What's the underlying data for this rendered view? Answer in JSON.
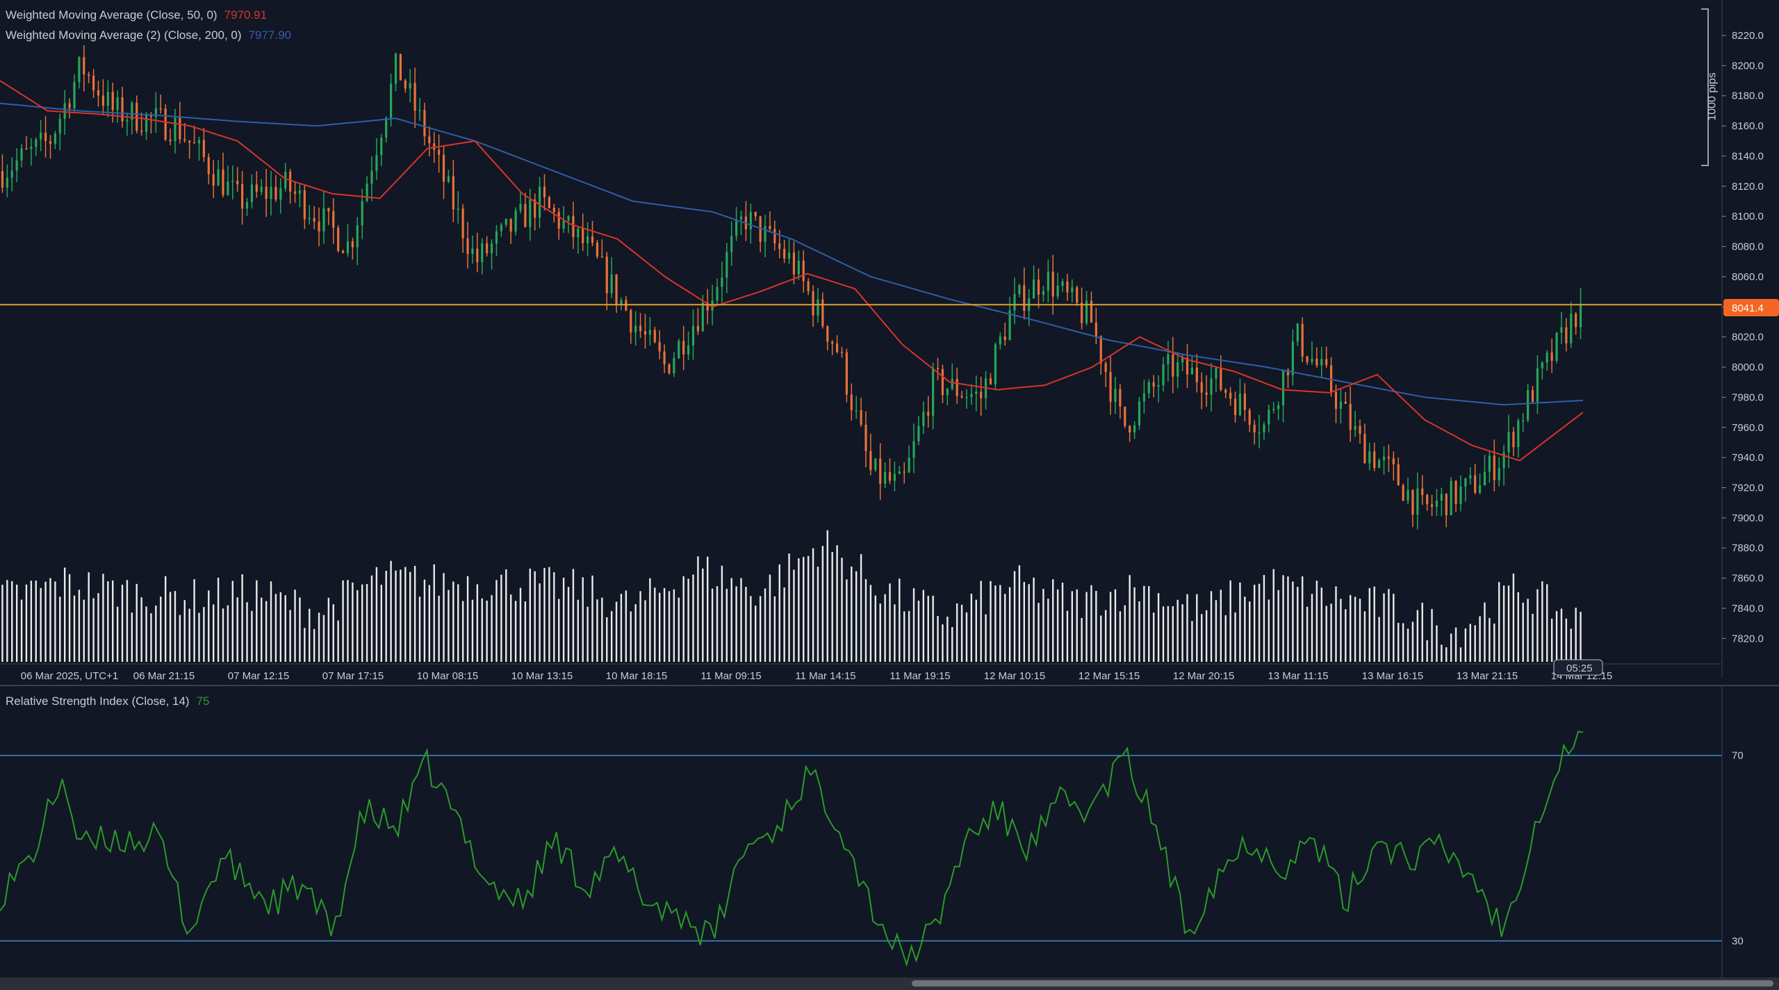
{
  "indicators": {
    "wma50": {
      "label": "Weighted Moving Average (Close, 50, 0)",
      "value": "7970.91",
      "color": "#d8342c"
    },
    "wma200": {
      "label": "Weighted Moving Average (2) (Close, 200, 0)",
      "value": "7977.90",
      "color": "#2f5ea8"
    },
    "rsi": {
      "label": "Relative Strength Index (Close, 14)",
      "value": "75",
      "color": "#2a9a2a"
    }
  },
  "price_axis": {
    "ticks": [
      "8220.0",
      "8200.0",
      "8180.0",
      "8160.0",
      "8140.0",
      "8120.0",
      "8100.0",
      "8080.0",
      "8060.0",
      "8040.0",
      "8020.0",
      "8000.0",
      "7980.0",
      "7960.0",
      "7940.0",
      "7920.0",
      "7900.0",
      "7880.0",
      "7860.0",
      "7840.0",
      "7820.0"
    ],
    "current_price": "8041.4",
    "current_price_color": "#f26522",
    "ruler_label": "1000 pips"
  },
  "time_axis": {
    "labels": [
      "06 Mar 2025, UTC+1",
      "06 Mar 21:15",
      "07 Mar 12:15",
      "07 Mar 17:15",
      "10 Mar 08:15",
      "10 Mar 13:15",
      "10 Mar 18:15",
      "11 Mar 09:15",
      "11 Mar 14:15",
      "11 Mar 19:15",
      "12 Mar 10:15",
      "12 Mar 15:15",
      "12 Mar 20:15",
      "13 Mar 11:15",
      "13 Mar 16:15",
      "13 Mar 21:15",
      "14 Mar 12:15"
    ],
    "countdown": "05:25"
  },
  "rsi_axis": {
    "ticks": [
      "70",
      "30"
    ]
  },
  "colors": {
    "bull": "#26a65b",
    "bear": "#e8713a",
    "volume": "#e9e9e9",
    "rsi_level": "#3f8fd0",
    "hline": "#e0a028"
  },
  "chart_data": [
    {
      "type": "candlestick",
      "series": [
        {
          "name": "Weighted Moving Average (Close, 50, 0)",
          "keypoints_x": [
            0,
            0.03,
            0.06,
            0.09,
            0.12,
            0.15,
            0.18,
            0.21,
            0.24,
            0.27,
            0.3,
            0.33,
            0.36,
            0.39,
            0.42,
            0.45,
            0.48,
            0.51,
            0.54,
            0.57,
            0.6,
            0.63,
            0.66,
            0.69,
            0.72,
            0.75,
            0.78,
            0.81,
            0.84,
            0.87,
            0.9,
            0.93,
            0.96,
            1.0
          ],
          "values": [
            8190,
            8170,
            8168,
            8165,
            8160,
            8150,
            8125,
            8115,
            8112,
            8145,
            8150,
            8115,
            8095,
            8085,
            8060,
            8040,
            8050,
            8062,
            8052,
            8015,
            7990,
            7985,
            7988,
            8000,
            8020,
            8005,
            7997,
            7985,
            7983,
            7995,
            7965,
            7948,
            7938,
            7970
          ]
        },
        {
          "name": "Weighted Moving Average (2) (Close, 200, 0)",
          "keypoints_x": [
            0,
            0.05,
            0.1,
            0.15,
            0.2,
            0.25,
            0.3,
            0.35,
            0.4,
            0.45,
            0.5,
            0.55,
            0.6,
            0.65,
            0.7,
            0.75,
            0.8,
            0.85,
            0.9,
            0.95,
            1.0
          ],
          "values": [
            8175,
            8170,
            8167,
            8163,
            8160,
            8165,
            8150,
            8130,
            8110,
            8103,
            8085,
            8060,
            8045,
            8032,
            8018,
            8008,
            8000,
            7990,
            7980,
            7975,
            7977.9
          ]
        },
        {
          "name": "Close",
          "keypoints_x": [
            0,
            0.03,
            0.05,
            0.07,
            0.11,
            0.15,
            0.18,
            0.22,
            0.25,
            0.27,
            0.3,
            0.34,
            0.37,
            0.4,
            0.42,
            0.45,
            0.47,
            0.5,
            0.53,
            0.55,
            0.57,
            0.59,
            0.62,
            0.64,
            0.66,
            0.69,
            0.71,
            0.74,
            0.77,
            0.8,
            0.82,
            0.84,
            0.86,
            0.88,
            0.9,
            0.93,
            0.95,
            0.97,
            1.0
          ],
          "values": [
            8130,
            8150,
            8200,
            8170,
            8160,
            8110,
            8120,
            8080,
            8200,
            8150,
            8070,
            8110,
            8080,
            8030,
            8000,
            8050,
            8100,
            8070,
            8010,
            7930,
            7920,
            7990,
            7980,
            8040,
            8060,
            8030,
            7960,
            8000,
            7990,
            7960,
            8020,
            7990,
            7950,
            7930,
            7905,
            7920,
            7940,
            7985,
            8041.4
          ]
        }
      ],
      "last_price": 8041.4,
      "ylim": [
        7810,
        8232
      ],
      "xlabels": [
        "06 Mar 2025, UTC+1",
        "06 Mar 21:15",
        "07 Mar 12:15",
        "07 Mar 17:15",
        "10 Mar 08:15",
        "10 Mar 13:15",
        "10 Mar 18:15",
        "11 Mar 09:15",
        "11 Mar 14:15",
        "11 Mar 19:15",
        "12 Mar 10:15",
        "12 Mar 15:15",
        "12 Mar 20:15",
        "13 Mar 11:15",
        "13 Mar 16:15",
        "13 Mar 21:15",
        "14 Mar 12:15"
      ],
      "volume_keypoints_x": [
        0,
        0.04,
        0.08,
        0.12,
        0.16,
        0.2,
        0.24,
        0.28,
        0.32,
        0.36,
        0.4,
        0.44,
        0.48,
        0.52,
        0.56,
        0.6,
        0.64,
        0.68,
        0.72,
        0.76,
        0.8,
        0.84,
        0.88,
        0.92,
        0.96,
        1.0
      ],
      "volume_levels": [
        0.45,
        0.6,
        0.5,
        0.45,
        0.5,
        0.3,
        0.65,
        0.6,
        0.6,
        0.55,
        0.35,
        0.75,
        0.5,
        1.0,
        0.5,
        0.25,
        0.6,
        0.4,
        0.55,
        0.3,
        0.6,
        0.45,
        0.35,
        0.1,
        0.55,
        0.2
      ],
      "grid": false
    },
    {
      "type": "line",
      "series": [
        {
          "name": "Relative Strength Index (Close, 14)",
          "keypoints_x": [
            0,
            0.02,
            0.04,
            0.05,
            0.07,
            0.1,
            0.12,
            0.14,
            0.17,
            0.19,
            0.21,
            0.23,
            0.25,
            0.27,
            0.29,
            0.31,
            0.33,
            0.35,
            0.37,
            0.39,
            0.41,
            0.43,
            0.45,
            0.47,
            0.49,
            0.51,
            0.53,
            0.55,
            0.57,
            0.59,
            0.61,
            0.63,
            0.65,
            0.67,
            0.69,
            0.71,
            0.73,
            0.75,
            0.77,
            0.79,
            0.81,
            0.83,
            0.85,
            0.87,
            0.89,
            0.91,
            0.93,
            0.95,
            0.97,
            0.99,
            1.0
          ],
          "values": [
            40,
            48,
            66,
            50,
            52,
            52,
            32,
            48,
            38,
            42,
            32,
            58,
            54,
            68,
            55,
            42,
            38,
            52,
            42,
            48,
            38,
            36,
            30,
            50,
            54,
            66,
            56,
            38,
            26,
            32,
            52,
            58,
            50,
            60,
            58,
            70,
            55,
            32,
            45,
            52,
            46,
            52,
            38,
            52,
            48,
            50,
            44,
            32,
            56,
            72,
            75
          ]
        }
      ],
      "ylim": [
        23,
        83
      ],
      "levels": [
        70,
        30
      ],
      "xlabels": [],
      "grid": false
    }
  ]
}
